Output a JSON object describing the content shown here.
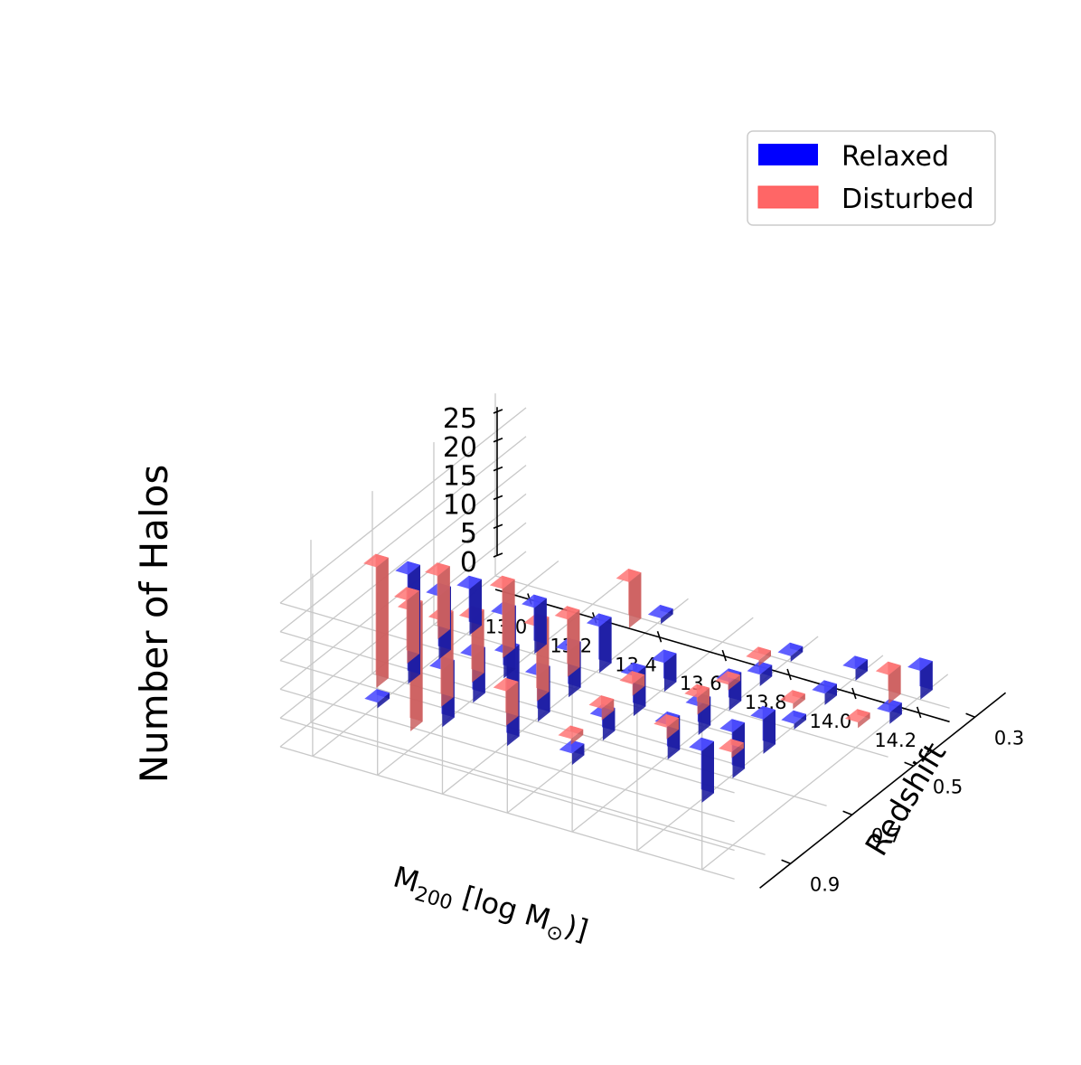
{
  "chart_data": {
    "type": "bar3d",
    "title": "",
    "xlabel_main": "M",
    "xlabel_sub": "200",
    "xlabel_rest": " [log M",
    "xlabel_sun": "⊙",
    "xlabel_end": ")]",
    "ylabel": "Redshift",
    "zlabel": "Number of Halos",
    "x_ticks": [
      "13.0",
      "13.2",
      "13.4",
      "13.6",
      "13.8",
      "14.0",
      "14.2"
    ],
    "y_ticks": [
      "0.3",
      "0.5",
      "0.7",
      "0.9"
    ],
    "z_ticks": [
      "0",
      "5",
      "10",
      "15",
      "20",
      "25"
    ],
    "zlim": [
      0,
      25
    ],
    "legend": [
      {
        "name": "Relaxed",
        "color": "#0000ff"
      },
      {
        "name": "Disturbed",
        "color": "#ff6666"
      }
    ],
    "colors": {
      "relaxed_front": "#2f2fd9",
      "relaxed_side": "#1a1a9e",
      "relaxed_top": "#4a4aff",
      "disturbed_front": "#e97a7a",
      "disturbed_side": "#c85a5a",
      "disturbed_top": "#ff7070",
      "grid": "#c8c8c8"
    },
    "series": [
      {
        "name": "Disturbed",
        "values": [
          [
            0,
            0,
            8,
            0,
            1,
            0,
            5
          ],
          [
            0,
            0,
            0,
            0,
            1,
            1,
            1
          ],
          [
            11,
            12,
            10,
            2,
            3,
            0,
            0
          ],
          [
            11,
            11,
            13,
            2,
            2,
            1,
            0
          ],
          [
            21,
            15,
            6,
            1,
            0,
            0,
            0
          ],
          [
            0,
            21,
            0,
            0,
            0,
            0,
            0
          ],
          [
            0,
            0,
            0,
            0,
            0,
            0,
            0
          ]
        ]
      },
      {
        "name": "Relaxed",
        "values": [
          [
            0,
            0,
            1,
            0,
            1,
            2,
            5
          ],
          [
            0,
            0,
            0,
            0,
            2,
            2,
            2
          ],
          [
            8,
            8,
            8,
            5,
            5,
            1,
            0
          ],
          [
            11,
            11,
            8,
            7,
            5,
            6,
            0
          ],
          [
            19,
            8,
            8,
            4,
            6,
            8,
            0
          ],
          [
            1,
            10,
            16,
            2,
            0,
            9,
            0
          ],
          [
            0,
            0,
            0,
            0,
            0,
            0,
            0
          ]
        ]
      }
    ]
  }
}
